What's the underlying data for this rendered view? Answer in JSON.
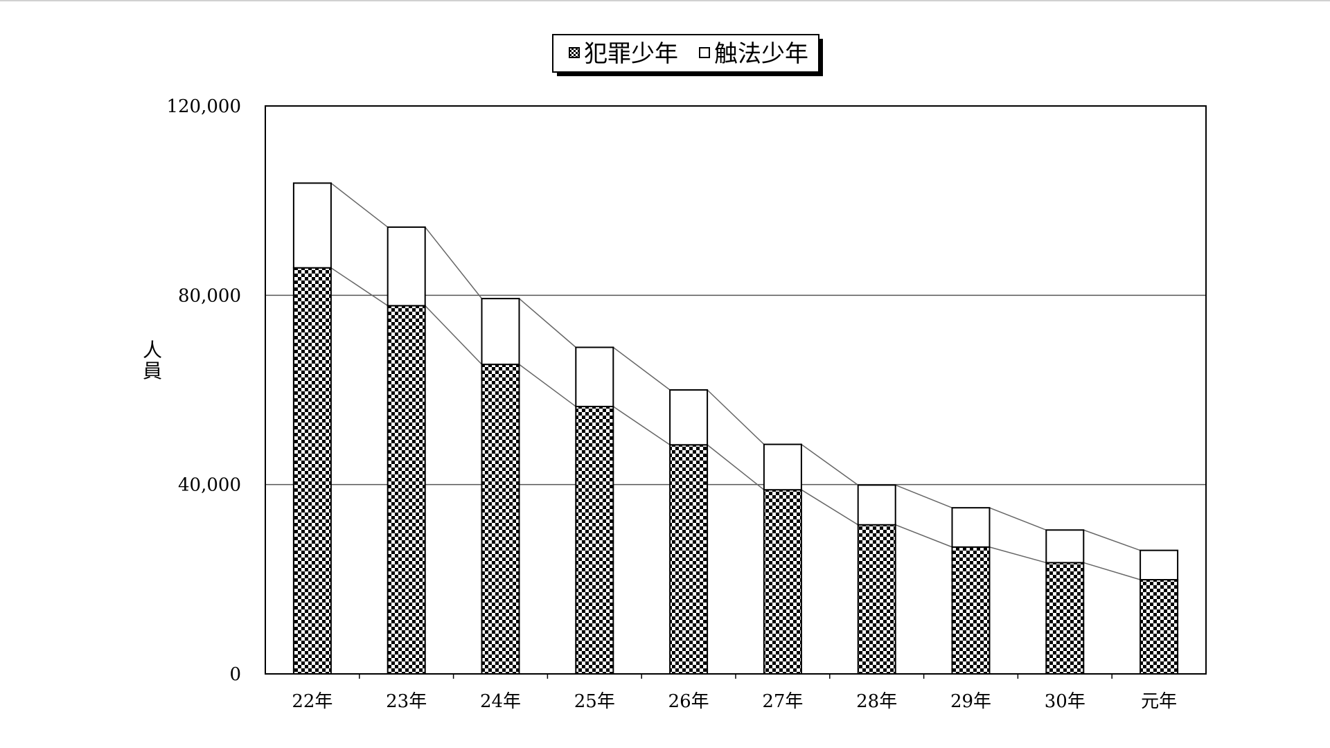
{
  "chart_data": {
    "type": "bar",
    "stacked": true,
    "categories": [
      "22年",
      "23年",
      "24年",
      "25年",
      "26年",
      "27年",
      "28年",
      "29年",
      "30年",
      "元年"
    ],
    "series": [
      {
        "name": "犯罪少年",
        "values": [
          85800,
          77800,
          65400,
          56500,
          48400,
          38900,
          31500,
          26800,
          23500,
          19900
        ],
        "pattern": "checker"
      },
      {
        "name": "触法少年",
        "values": [
          17900,
          16600,
          13900,
          12500,
          11600,
          9600,
          8400,
          8300,
          6900,
          6200
        ],
        "pattern": "white"
      }
    ],
    "ylabel": "人員",
    "ylim": [
      0,
      120000
    ],
    "yticks": [
      0,
      40000,
      80000,
      120000
    ],
    "ytick_labels": [
      "0",
      "40,000",
      "80,000",
      "120,000"
    ],
    "gridlines": [
      40000,
      80000
    ],
    "legend": "top-center",
    "series_lines": true,
    "colors": {
      "bar_edge": "#000000",
      "checker": "#000000",
      "line": "#666666",
      "grid": "#555555"
    }
  }
}
